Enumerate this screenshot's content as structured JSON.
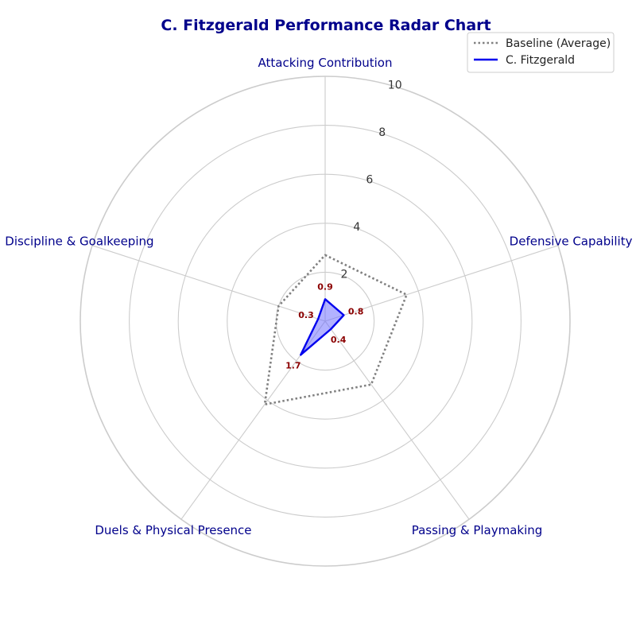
{
  "chart_data": {
    "type": "radar",
    "title": "C. Fitzgerald Performance Radar Chart",
    "categories": [
      "Attacking Contribution",
      "Defensive Capability",
      "Passing & Playmaking",
      "Duels & Physical Presence",
      "Discipline & Goalkeeping"
    ],
    "rlim": [
      0,
      10
    ],
    "rticks": [
      2,
      4,
      6,
      8,
      10
    ],
    "grid": true,
    "legend_position": "top-right",
    "series": [
      {
        "name": "Baseline (Average)",
        "values": [
          2.7,
          3.5,
          3.2,
          4.2,
          2.0
        ],
        "color": "#808080",
        "style": "dotted"
      },
      {
        "name": "C. Fitzgerald",
        "values": [
          0.9,
          0.8,
          0.4,
          1.7,
          0.3
        ],
        "color": "#0000ee",
        "fill": "#6666ff",
        "show_values": true
      }
    ]
  }
}
